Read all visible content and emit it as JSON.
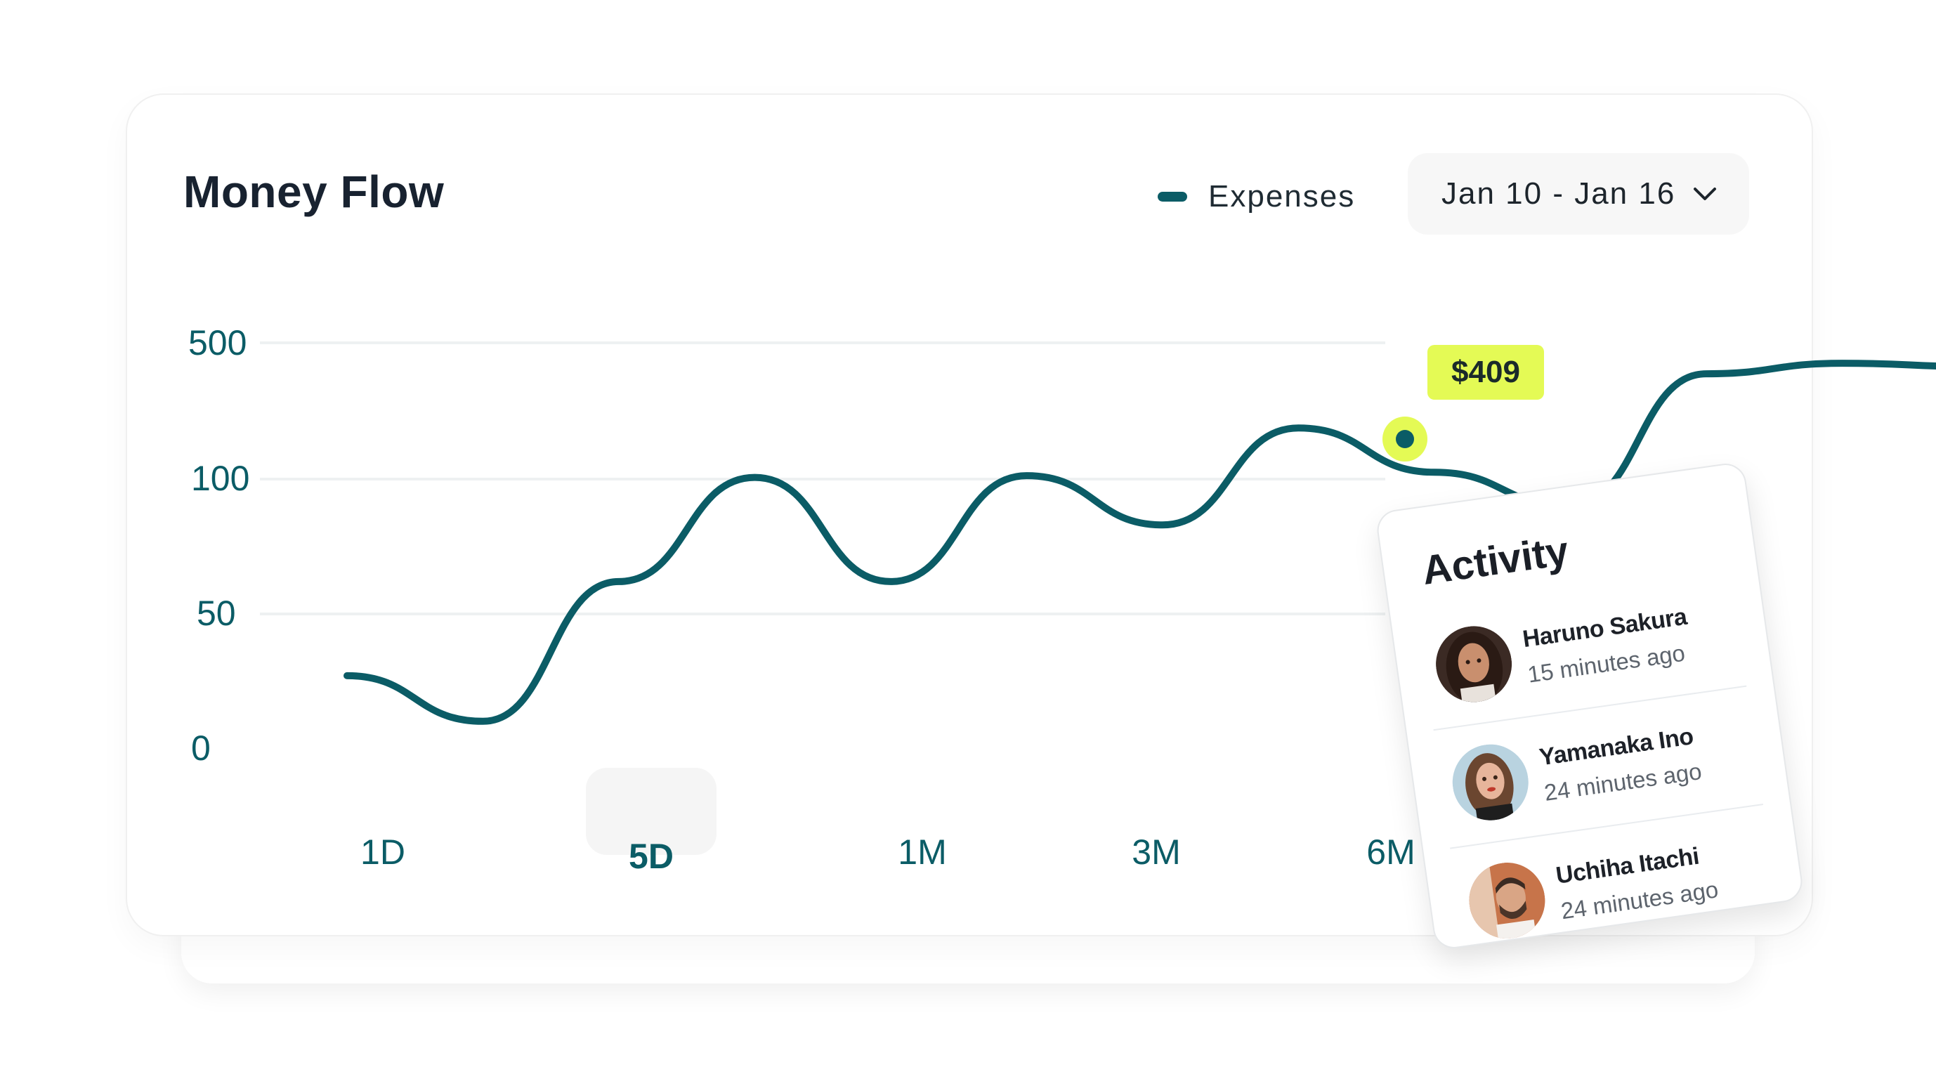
{
  "header": {
    "title": "Money Flow",
    "date_range": "Jan 10 - Jan 16"
  },
  "colors": {
    "line": "#0b5c66",
    "highlight": "#e4fa55",
    "gridline": "#eef1f2"
  },
  "chart_data": {
    "type": "line",
    "title": "Money Flow",
    "legend": [
      "Expenses"
    ],
    "legend_position": "top-right",
    "y_ticks": [
      "500",
      "100",
      "50",
      "0"
    ],
    "grid": true,
    "series": [
      {
        "name": "Expenses",
        "x": [
          0,
          1,
          2,
          3,
          4,
          5,
          6,
          7,
          8,
          9,
          10,
          11,
          12
        ],
        "values": [
          27,
          10,
          62,
          105,
          62,
          110,
          83,
          250,
          120,
          90,
          409,
          440,
          430
        ]
      }
    ],
    "highlight": {
      "label": "$409",
      "index": 10
    },
    "periods": [
      "1D",
      "5D",
      "1M",
      "3M",
      "6M"
    ],
    "selected_period": "5D"
  },
  "activity": {
    "title": "Activity",
    "items": [
      {
        "name": "Haruno Sakura",
        "time": "15 minutes ago",
        "avatar": "portrait-woman-dark-hair-icon"
      },
      {
        "name": "Yamanaka Ino",
        "time": "24 minutes ago",
        "avatar": "portrait-woman-light-icon"
      },
      {
        "name": "Uchiha Itachi",
        "time": "24 minutes ago",
        "avatar": "portrait-man-beard-icon"
      }
    ]
  }
}
